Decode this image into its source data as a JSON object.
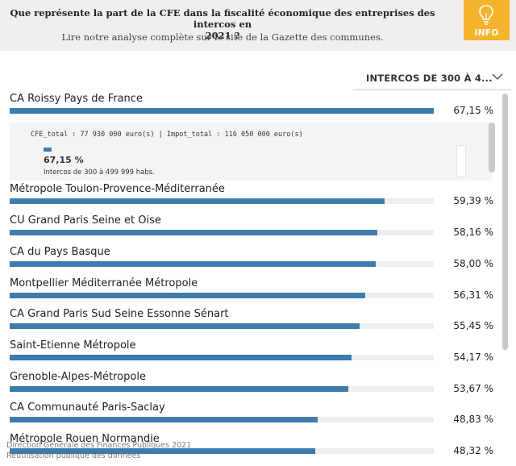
{
  "header": {
    "title_line1": "Que représente la part de la CFE dans la fiscalité économique des entreprises des intercos en",
    "title_line2": "2021 ?",
    "subtitle": "Lire notre analyse complète sur le site de la Gazette des communes.",
    "info_label": "INFO",
    "badge_color": "#f6b32e"
  },
  "filter": {
    "label": "INTERCOS DE 300 À 4...",
    "icon": "chevron-down-icon"
  },
  "tooltip": {
    "detail": "CFE_total : 77 930 000 euro(s) | Impot_total : 116 050 000 euro(s)",
    "pct": "67,15 %",
    "desc": "Intercos de 300 à 499 999 habs."
  },
  "chart_data": {
    "type": "bar",
    "orientation": "horizontal",
    "bar_color": "#3d7cac",
    "xlim": [
      0,
      67.15
    ],
    "categories": [
      "CA Roissy Pays de France",
      "Métropole Toulon-Provence-Méditerranée",
      "CU Grand Paris Seine et Oise",
      "CA du Pays Basque",
      "Montpellier Méditerranée Métropole",
      "CA Grand Paris Sud Seine Essonne Sénart",
      "Saint-Etienne Métropole",
      "Grenoble-Alpes-Métropole",
      "CA Communauté Paris-Saclay",
      "Métropole Rouen Normandie"
    ],
    "values": [
      67.15,
      59.39,
      58.16,
      58.0,
      56.31,
      55.45,
      54.17,
      53.67,
      48.83,
      48.32
    ],
    "value_labels": [
      "67,15 %",
      "59,39 %",
      "58,16 %",
      "58,00 %",
      "56,31 %",
      "55,45 %",
      "54,17 %",
      "53,67 %",
      "48,83 %",
      "48,32 %"
    ]
  },
  "footer": {
    "source": "Direction Générale des Finances Publiques 2021",
    "license": "Réutilisation publique des données"
  }
}
